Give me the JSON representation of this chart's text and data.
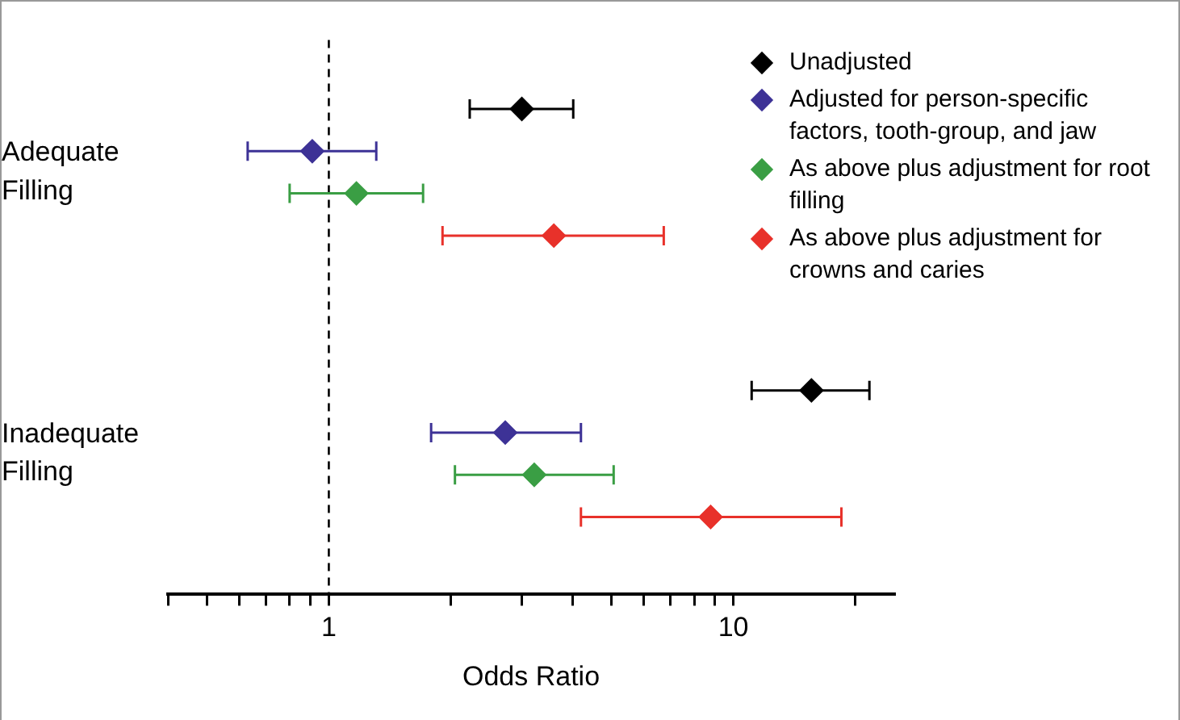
{
  "chart_data": {
    "type": "scatter",
    "xlabel": "Odds Ratio",
    "orientation": "horizontal",
    "categories": [
      "Adequate Filling",
      "Inadequate Filling"
    ],
    "log": "x",
    "xlim": [
      0.4,
      25
    ],
    "xticks": [
      {
        "value": 0.4,
        "label": null
      },
      {
        "value": 0.5,
        "label": null
      },
      {
        "value": 0.6,
        "label": null
      },
      {
        "value": 0.7,
        "label": null
      },
      {
        "value": 0.8,
        "label": null
      },
      {
        "value": 0.9,
        "label": null
      },
      1,
      {
        "value": 2,
        "label": null
      },
      {
        "value": 3,
        "label": null
      },
      {
        "value": 4,
        "label": null
      },
      {
        "value": 5,
        "label": null
      },
      {
        "value": 6,
        "label": null
      },
      {
        "value": 7,
        "label": null
      },
      {
        "value": 8,
        "label": null
      },
      {
        "value": 9,
        "label": null
      },
      10,
      {
        "value": 20,
        "label": null
      }
    ],
    "grid": false,
    "legend": "top right",
    "marker": "diamond",
    "ref_lines": [
      {
        "axis": "x",
        "value": 1,
        "color": "#000000",
        "line_style": "dashed"
      }
    ],
    "series": [
      {
        "name": "Unadjusted",
        "color": "#000000",
        "values": [
          3.0,
          15.6
        ],
        "errors": [
          [
            2.23,
            4.02
          ],
          [
            11.1,
            21.7
          ]
        ]
      },
      {
        "name": "Adjusted for person-specific factors, tooth-group, and jaw",
        "color": "#3d3296",
        "values": [
          0.91,
          2.73
        ],
        "errors": [
          [
            0.63,
            1.31
          ],
          [
            1.79,
            4.2
          ]
        ]
      },
      {
        "name": "As above plus adjustment for root filling",
        "color": "#3a9e44",
        "values": [
          1.17,
          3.22
        ],
        "errors": [
          [
            0.8,
            1.71
          ],
          [
            2.05,
            5.06
          ]
        ]
      },
      {
        "name": "As above plus adjustment for crowns and caries",
        "color": "#e8312a",
        "values": [
          3.6,
          8.79
        ],
        "errors": [
          [
            1.91,
            6.73
          ],
          [
            4.2,
            18.5
          ]
        ]
      }
    ]
  }
}
